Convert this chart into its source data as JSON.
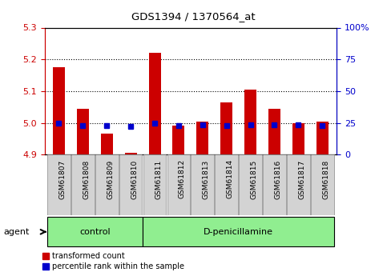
{
  "title": "GDS1394 / 1370564_at",
  "samples": [
    "GSM61807",
    "GSM61808",
    "GSM61809",
    "GSM61810",
    "GSM61811",
    "GSM61812",
    "GSM61813",
    "GSM61814",
    "GSM61815",
    "GSM61816",
    "GSM61817",
    "GSM61818"
  ],
  "red_values": [
    5.175,
    5.045,
    4.965,
    4.905,
    5.22,
    4.99,
    5.005,
    5.065,
    5.105,
    5.045,
    5.0,
    5.005
  ],
  "blue_values": [
    24.5,
    23.0,
    22.5,
    22.0,
    24.5,
    22.5,
    23.5,
    23.0,
    23.5,
    23.5,
    23.5,
    23.0
  ],
  "ylim_left": [
    4.9,
    5.3
  ],
  "ylim_right": [
    0,
    100
  ],
  "yticks_left": [
    4.9,
    5.0,
    5.1,
    5.2,
    5.3
  ],
  "yticks_right": [
    0,
    25,
    50,
    75,
    100
  ],
  "ytick_labels_right": [
    "0",
    "25",
    "50",
    "75",
    "100%"
  ],
  "groups": [
    {
      "label": "control",
      "start": 0,
      "end": 4,
      "color": "#90EE90"
    },
    {
      "label": "D-penicillamine",
      "start": 4,
      "end": 12,
      "color": "#90EE90"
    }
  ],
  "bar_width": 0.5,
  "bar_color_red": "#CC0000",
  "bar_color_blue": "#0000CC",
  "baseline": 4.9,
  "bg_color": "#FFFFFF",
  "plot_bg": "#FFFFFF",
  "left_tick_color": "#CC0000",
  "right_tick_color": "#0000CC",
  "legend_red": "transformed count",
  "legend_blue": "percentile rank within the sample",
  "agent_label": "agent",
  "bar_box_color": "#D3D3D3",
  "group_box_color": "#90EE90"
}
